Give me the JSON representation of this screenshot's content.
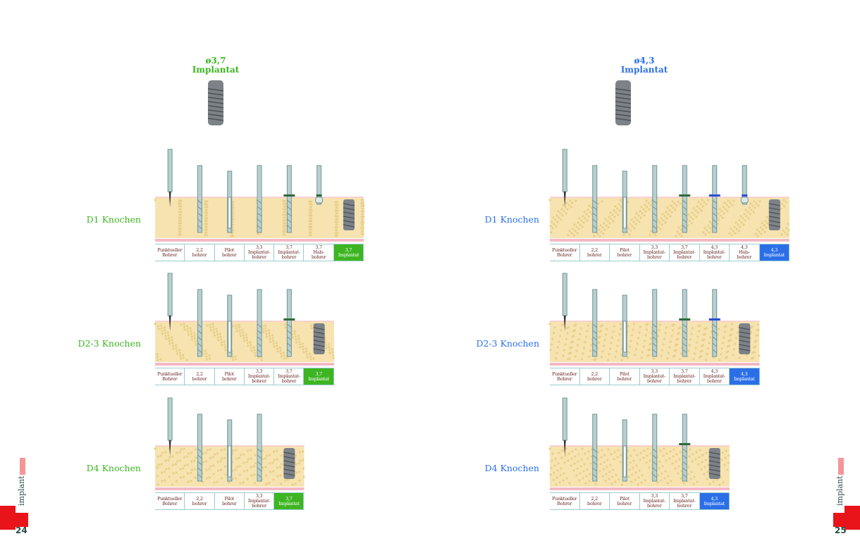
{
  "colors": {
    "green": "#3db522",
    "blue": "#2b6fe8",
    "bone": "#f6e3b0",
    "gum": "#f4b8c4"
  },
  "pages": [
    {
      "heading": {
        "line1": "ø3,7",
        "line2": "Implantat"
      },
      "accent": "green",
      "page_number": "24",
      "logo": "implant",
      "rows": [
        {
          "label": "D1 Knochen",
          "cells": [
            "Punktueller\nBohrer",
            "2,2\nbohrer",
            "Pilot\nbohrer",
            "3,3\nImplantat-\nbohrer",
            "3,7\nImplantat-\nbohrer",
            "3,7\nHals-\nbohrer",
            "3,7\nImplantat"
          ],
          "tools": [
            "punch-drill",
            "drill",
            "pilot-drill",
            "drill",
            "drill-green-band",
            "neck-drill-green-band",
            "implant"
          ]
        },
        {
          "label": "D2-3 Knochen",
          "cells": [
            "Punktueller\nBohrer",
            "2,2\nbohrer",
            "Pilot\nbohrer",
            "3,3\nImplantat-\nbohrer",
            "3,7\nImplantat-\nbohrer",
            "3,7\nImplantat"
          ],
          "tools": [
            "punch-drill",
            "drill",
            "pilot-drill",
            "drill",
            "drill-green-band",
            "implant"
          ]
        },
        {
          "label": "D4 Knochen",
          "cells": [
            "Punktueller\nBohrer",
            "2,2\nbohrer",
            "Pilot\nbohrer",
            "3,3\nImplantat-\nbohrer",
            "3,7\nImplantat"
          ],
          "tools": [
            "punch-drill",
            "drill",
            "pilot-drill",
            "drill",
            "implant"
          ]
        }
      ]
    },
    {
      "heading": {
        "line1": "ø4,3",
        "line2": "Implantat"
      },
      "accent": "blue",
      "page_number": "25",
      "logo": "implant",
      "rows": [
        {
          "label": "D1 Knochen",
          "cells": [
            "Punktueller\nBohrer",
            "2,2\nbohrer",
            "Pilot\nbohrer",
            "3,3\nImplantat-\nbohrer",
            "3,7\nImplantat-\nbohrer",
            "4,3\nImplantat-\nbohrer",
            "4,3\nHals-\nbohrer",
            "4,3\nImplantat"
          ],
          "tools": [
            "punch-drill",
            "drill",
            "pilot-drill",
            "drill",
            "drill-green-band",
            "drill-blue-band",
            "neck-drill-blue-band",
            "implant"
          ]
        },
        {
          "label": "D2-3 Knochen",
          "cells": [
            "Punktueller\nBohrer",
            "2,2\nbohrer",
            "Pilot\nbohrer",
            "3,3\nImplantat-\nbohrer",
            "3,7\nImplantat-\nbohrer",
            "4,3\nImplantat-\nbohrer",
            "4,3\nImplantat"
          ],
          "tools": [
            "punch-drill",
            "drill",
            "pilot-drill",
            "drill",
            "drill-green-band",
            "drill-blue-band",
            "implant"
          ]
        },
        {
          "label": "D4 Knochen",
          "cells": [
            "Punktueller\nBohrer",
            "2,2\nbohrer",
            "Pilot\nbohrer",
            "3,3\nImplantat-\nbohrer",
            "3,7\nImplantat-\nbohrer",
            "4,3\nImplantat"
          ],
          "tools": [
            "punch-drill",
            "drill",
            "pilot-drill",
            "drill",
            "drill-green-band",
            "implant"
          ]
        }
      ]
    }
  ]
}
